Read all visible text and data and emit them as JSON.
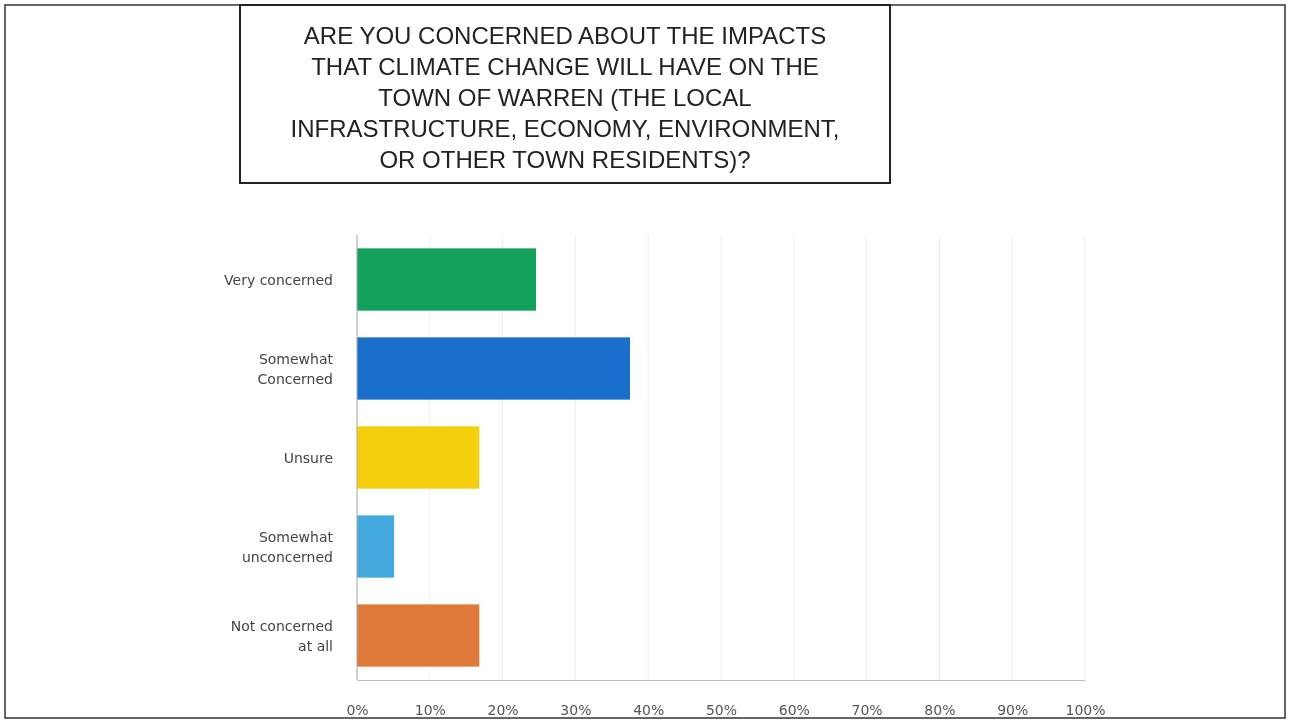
{
  "chart_data": {
    "type": "bar",
    "orientation": "horizontal",
    "title": "ARE YOU CONCERNED ABOUT THE IMPACTS\nTHAT CLIMATE CHANGE WILL HAVE ON THE\nTOWN OF WARREN (THE LOCAL\nINFRASTRUCTURE, ECONOMY, ENVIRONMENT,\nOR OTHER TOWN RESIDENTS)?",
    "categories": [
      "Very concerned",
      "Somewhat\nConcerned",
      "Unsure",
      "Somewhat\nunconcerned",
      "Not concerned\nat all"
    ],
    "values": [
      24.6,
      37.5,
      16.8,
      5.1,
      16.8
    ],
    "colors": [
      "#13a05a",
      "#1a6fcb",
      "#f5cf0c",
      "#44aadd",
      "#e07a3a"
    ],
    "xlim": [
      0,
      100
    ],
    "xticks": [
      {
        "value": 0,
        "label": "0%"
      },
      {
        "value": 10,
        "label": "10%"
      },
      {
        "value": 20,
        "label": "20%"
      },
      {
        "value": 30,
        "label": "30%"
      },
      {
        "value": 40,
        "label": "40%"
      },
      {
        "value": 50,
        "label": "50%"
      },
      {
        "value": 60,
        "label": "60%"
      },
      {
        "value": 70,
        "label": "70%"
      },
      {
        "value": 80,
        "label": "80%"
      },
      {
        "value": 90,
        "label": "90%"
      },
      {
        "value": 100,
        "label": "100%"
      }
    ],
    "grid": "x"
  }
}
